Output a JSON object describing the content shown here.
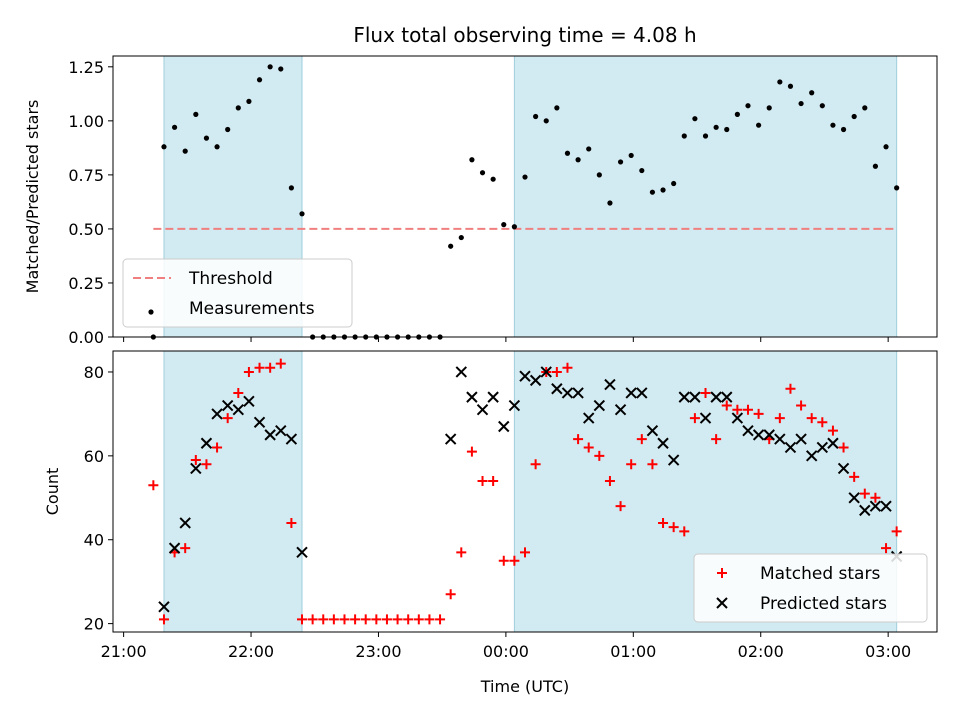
{
  "chart_data": {
    "type": "scatter",
    "title": "Flux total observing time = 4.08 h",
    "xlabel": "Time (UTC)",
    "x_tick_labels": [
      "21:00",
      "22:00",
      "23:00",
      "00:00",
      "01:00",
      "02:00",
      "03:00"
    ],
    "x_tick_values": [
      "2000-01-01T21:00",
      "2000-01-01T22:00",
      "2000-01-01T23:00",
      "2000-01-02T00:00",
      "2000-01-02T01:00",
      "2000-01-02T02:00",
      "2000-01-02T03:00"
    ],
    "xlim": [
      "2000-01-01T20:55",
      "2000-01-02T03:23"
    ],
    "shaded_intervals": [
      [
        "2000-01-01T21:19",
        "2000-01-01T22:24"
      ],
      [
        "2000-01-02T00:04",
        "2000-01-02T03:04"
      ]
    ],
    "shade_color": "#add8e6",
    "x": [
      "2000-01-01T21:14",
      "2000-01-01T21:19",
      "2000-01-01T21:24",
      "2000-01-01T21:29",
      "2000-01-01T21:34",
      "2000-01-01T21:39",
      "2000-01-01T21:44",
      "2000-01-01T21:49",
      "2000-01-01T21:54",
      "2000-01-01T21:59",
      "2000-01-01T22:04",
      "2000-01-01T22:09",
      "2000-01-01T22:14",
      "2000-01-01T22:19",
      "2000-01-01T22:24",
      "2000-01-01T22:29",
      "2000-01-01T22:34",
      "2000-01-01T22:39",
      "2000-01-01T22:44",
      "2000-01-01T22:49",
      "2000-01-01T22:54",
      "2000-01-01T22:59",
      "2000-01-01T23:04",
      "2000-01-01T23:09",
      "2000-01-01T23:14",
      "2000-01-01T23:19",
      "2000-01-01T23:24",
      "2000-01-01T23:29",
      "2000-01-01T23:34",
      "2000-01-01T23:39",
      "2000-01-01T23:44",
      "2000-01-01T23:49",
      "2000-01-01T23:54",
      "2000-01-01T23:59",
      "2000-01-02T00:04",
      "2000-01-02T00:09",
      "2000-01-02T00:14",
      "2000-01-02T00:19",
      "2000-01-02T00:24",
      "2000-01-02T00:29",
      "2000-01-02T00:34",
      "2000-01-02T00:39",
      "2000-01-02T00:44",
      "2000-01-02T00:49",
      "2000-01-02T00:54",
      "2000-01-02T00:59",
      "2000-01-02T01:04",
      "2000-01-02T01:09",
      "2000-01-02T01:14",
      "2000-01-02T01:19",
      "2000-01-02T01:24",
      "2000-01-02T01:29",
      "2000-01-02T01:34",
      "2000-01-02T01:39",
      "2000-01-02T01:44",
      "2000-01-02T01:49",
      "2000-01-02T01:54",
      "2000-01-02T01:59",
      "2000-01-02T02:04",
      "2000-01-02T02:09",
      "2000-01-02T02:14",
      "2000-01-02T02:19",
      "2000-01-02T02:24",
      "2000-01-02T02:29",
      "2000-01-02T02:34",
      "2000-01-02T02:39",
      "2000-01-02T02:44",
      "2000-01-02T02:49",
      "2000-01-02T02:54",
      "2000-01-02T02:59",
      "2000-01-02T03:04"
    ],
    "panels": [
      {
        "ylabel": "Matched/Predicted stars",
        "ylim": [
          0,
          1.3
        ],
        "y_ticks": [
          0.0,
          0.25,
          0.5,
          0.75,
          1.0,
          1.25
        ],
        "y_tick_labels": [
          "0.00",
          "0.25",
          "0.50",
          "0.75",
          "1.00",
          "1.25"
        ],
        "legend_position": "bottom-left",
        "threshold": {
          "name": "Threshold",
          "value": 0.5,
          "x_range": [
            "2000-01-01T21:14",
            "2000-01-02T03:04"
          ],
          "color": "#f08080"
        },
        "series": [
          {
            "name": "Measurements",
            "marker": "dot",
            "color": "#000000",
            "values": [
              0.0,
              0.88,
              0.97,
              0.86,
              1.03,
              0.92,
              0.88,
              0.96,
              1.06,
              1.09,
              1.19,
              1.25,
              1.24,
              0.69,
              0.57,
              0.0,
              0.0,
              0.0,
              0.0,
              0.0,
              0.0,
              0.0,
              0.0,
              0.0,
              0.0,
              0.0,
              0.0,
              0.0,
              0.42,
              0.46,
              0.82,
              0.76,
              0.73,
              0.52,
              0.51,
              0.74,
              1.02,
              1.0,
              1.06,
              0.85,
              0.82,
              0.87,
              0.75,
              0.62,
              0.81,
              0.84,
              0.77,
              0.67,
              0.68,
              0.71,
              0.93,
              1.01,
              0.93,
              0.97,
              0.96,
              1.03,
              1.07,
              0.98,
              1.06,
              1.18,
              1.16,
              1.08,
              1.13,
              1.07,
              0.98,
              0.96,
              1.02,
              1.06,
              0.79,
              0.88,
              0.69
            ]
          }
        ]
      },
      {
        "ylabel": "Count",
        "ylim": [
          18,
          85
        ],
        "y_ticks": [
          20,
          40,
          60,
          80
        ],
        "y_tick_labels": [
          "20",
          "40",
          "60",
          "80"
        ],
        "legend_position": "bottom-right",
        "series": [
          {
            "name": "Matched stars",
            "marker": "plus",
            "color": "#ff0000",
            "values": [
              53,
              21,
              37,
              38,
              59,
              58,
              62,
              69,
              75,
              80,
              81,
              81,
              82,
              44,
              21,
              21,
              21,
              21,
              21,
              21,
              21,
              21,
              21,
              21,
              21,
              21,
              21,
              21,
              27,
              37,
              61,
              54,
              54,
              35,
              35,
              37,
              58,
              80,
              80,
              81,
              64,
              62,
              60,
              54,
              48,
              58,
              64,
              58,
              44,
              43,
              42,
              69,
              75,
              64,
              72,
              71,
              71,
              70,
              64,
              69,
              76,
              72,
              69,
              68,
              66,
              62,
              55,
              51,
              50,
              38,
              42
            ]
          },
          {
            "name": "Predicted stars",
            "marker": "x",
            "color": "#000000",
            "values": [
              null,
              24,
              38,
              44,
              57,
              63,
              70,
              72,
              71,
              73,
              68,
              65,
              66,
              64,
              37,
              null,
              null,
              null,
              null,
              null,
              null,
              null,
              null,
              null,
              null,
              null,
              null,
              null,
              64,
              80,
              74,
              71,
              74,
              67,
              72,
              79,
              78,
              80,
              76,
              75,
              75,
              69,
              72,
              77,
              71,
              75,
              75,
              66,
              63,
              59,
              74,
              74,
              69,
              74,
              74,
              69,
              66,
              65,
              65,
              64,
              62,
              64,
              60,
              62,
              63,
              57,
              50,
              47,
              48,
              48,
              36
            ]
          }
        ]
      }
    ]
  }
}
